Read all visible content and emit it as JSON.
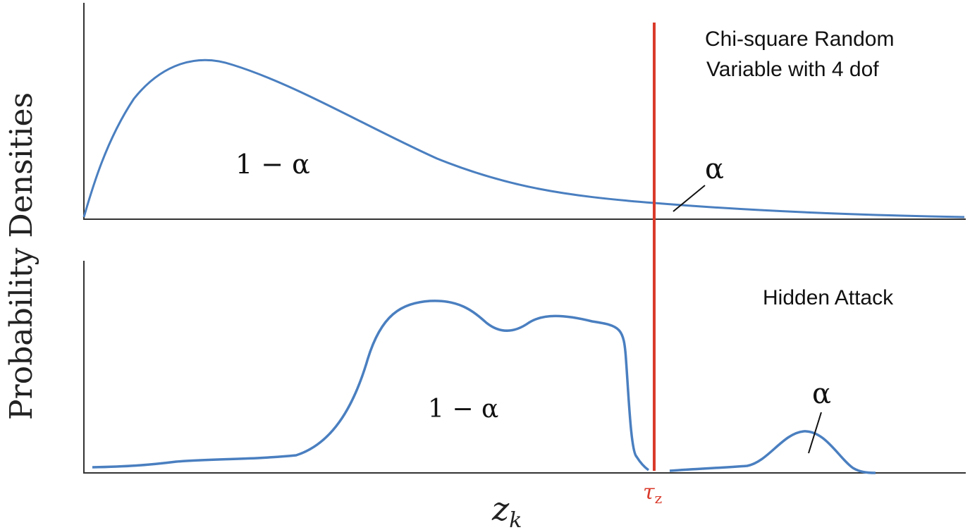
{
  "y_axis_label": "Probability Densities",
  "x_axis_label": "z",
  "x_axis_subscript": "k",
  "threshold_label": "τ",
  "threshold_subscript": "z",
  "colors": {
    "curve": "#4a7fc0",
    "threshold": "#d93a2b",
    "axis": "#333333",
    "text": "#111111"
  },
  "top_panel": {
    "title_line1": "Chi-square Random",
    "title_line2": "Variable with 4 dof",
    "area_label": "1 − α",
    "tail_label": "α"
  },
  "bottom_panel": {
    "title": "Hidden Attack",
    "area_label": "1 − α",
    "tail_label": "α"
  }
}
